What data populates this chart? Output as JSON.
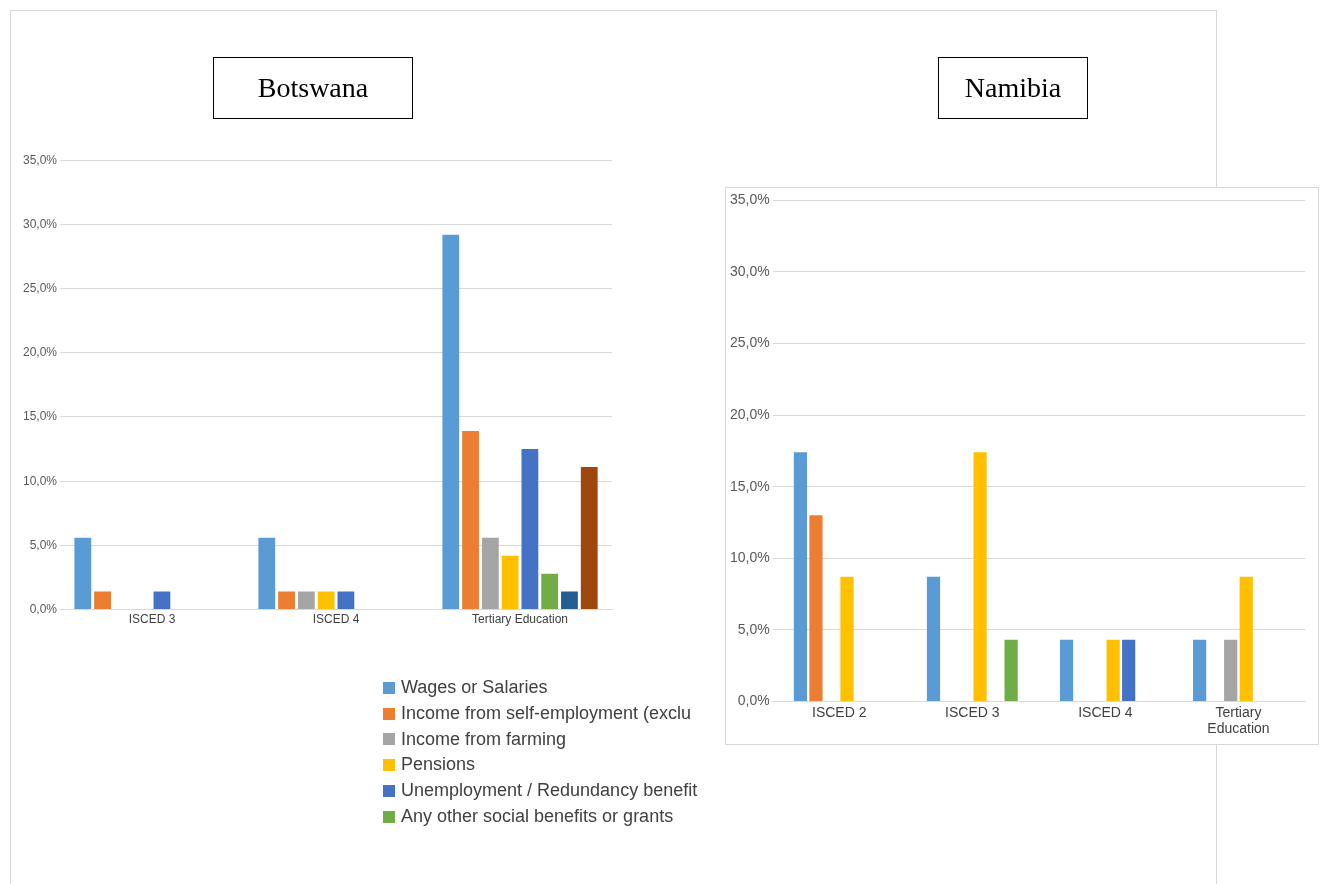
{
  "chart_data": [
    {
      "type": "bar",
      "title": "Botswana",
      "categories": [
        "ISCED 3",
        "ISCED 4",
        "Tertiary Education"
      ],
      "series": [
        {
          "name": "Wages or Salaries",
          "color": "#5b9bd5",
          "values": [
            5.6,
            5.6,
            29.2
          ]
        },
        {
          "name": "Income from self-employment (exclu",
          "color": "#ed7d31",
          "values": [
            1.4,
            1.4,
            13.9
          ]
        },
        {
          "name": "Income from farming",
          "color": "#a5a5a5",
          "values": [
            null,
            1.4,
            5.6
          ]
        },
        {
          "name": "Pensions",
          "color": "#ffc000",
          "values": [
            null,
            1.4,
            4.2
          ]
        },
        {
          "name": "Unemployment / Redundancy benefit",
          "color": "#4472c4",
          "values": [
            1.4,
            1.4,
            12.5
          ]
        },
        {
          "name": "Any other social benefits or grants",
          "color": "#70ad47",
          "values": [
            null,
            null,
            2.8
          ]
        },
        {
          "color": "#255e91",
          "values": [
            null,
            null,
            1.4
          ]
        },
        {
          "color": "#9e480e",
          "values": [
            null,
            null,
            11.1
          ]
        }
      ],
      "ylim": [
        0,
        35
      ],
      "yticks": [
        {
          "value": 0,
          "label": "0,0%"
        },
        {
          "value": 5,
          "label": "5,0%"
        },
        {
          "value": 10,
          "label": "10,0%"
        },
        {
          "value": 15,
          "label": "15,0%"
        },
        {
          "value": 20,
          "label": "20,0%"
        },
        {
          "value": 25,
          "label": "25,0%"
        },
        {
          "value": 30,
          "label": "30,0%"
        },
        {
          "value": 35,
          "label": "35,0%"
        }
      ],
      "grid": "y",
      "legend": "bottom"
    },
    {
      "type": "bar",
      "title": "Namibia",
      "categories": [
        "ISCED 2",
        "ISCED 3",
        "ISCED 4",
        "Tertiary Education"
      ],
      "series": [
        {
          "color": "#5b9bd5",
          "values": [
            17.4,
            8.7,
            4.3,
            4.3
          ]
        },
        {
          "color": "#ed7d31",
          "values": [
            13.0,
            null,
            null,
            null
          ]
        },
        {
          "color": "#a5a5a5",
          "values": [
            null,
            null,
            null,
            4.3
          ]
        },
        {
          "color": "#ffc000",
          "values": [
            8.7,
            17.4,
            4.3,
            8.7
          ]
        },
        {
          "color": "#4472c4",
          "values": [
            null,
            null,
            4.3,
            null
          ]
        },
        {
          "color": "#70ad47",
          "values": [
            null,
            4.3,
            null,
            null
          ]
        }
      ],
      "ylim": [
        0,
        35
      ],
      "yticks": [
        {
          "value": 0,
          "label": "0,0%"
        },
        {
          "value": 5,
          "label": "5,0%"
        },
        {
          "value": 10,
          "label": "10,0%"
        },
        {
          "value": 15,
          "label": "15,0%"
        },
        {
          "value": 20,
          "label": "20,0%"
        },
        {
          "value": 25,
          "label": "25,0%"
        },
        {
          "value": 30,
          "label": "30,0%"
        },
        {
          "value": 35,
          "label": "35,0%"
        }
      ],
      "grid": "y"
    }
  ]
}
